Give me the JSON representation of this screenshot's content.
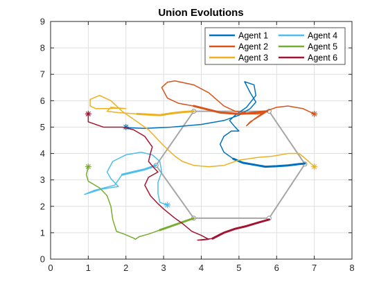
{
  "chart_data": {
    "type": "line",
    "title": "Union Evolutions",
    "xlabel": "",
    "ylabel": "",
    "xlim": [
      0,
      8
    ],
    "ylim": [
      0,
      9
    ],
    "xticks": [
      "0",
      "1",
      "2",
      "3",
      "4",
      "5",
      "6",
      "7",
      "8"
    ],
    "yticks": [
      "0",
      "1",
      "2",
      "3",
      "4",
      "5",
      "6",
      "7",
      "8",
      "9"
    ],
    "grid": true,
    "legend_placement": "top-right",
    "formation": {
      "color": "#a6a6a6",
      "vertices": [
        [
          3.8,
          5.6
        ],
        [
          5.8,
          5.6
        ],
        [
          6.75,
          3.6
        ],
        [
          5.8,
          1.55
        ],
        [
          3.8,
          1.55
        ],
        [
          2.8,
          3.55
        ]
      ]
    },
    "series": [
      {
        "name": "Agent 1",
        "color": "#0072bd",
        "start": [
          2.0,
          5.0
        ],
        "x": [
          2.0,
          2.5,
          3.2,
          4.0,
          4.6,
          5.0,
          5.3,
          5.45,
          5.3,
          5.15,
          5.4,
          5.45,
          5.2,
          4.9,
          4.75,
          4.9,
          5.0,
          4.8,
          4.6,
          4.5,
          4.6,
          4.85,
          5.1,
          5.5,
          5.7,
          6.0,
          6.3,
          6.6,
          6.75
        ],
        "y": [
          4.98,
          4.95,
          5.0,
          5.1,
          5.25,
          5.45,
          5.7,
          5.95,
          6.3,
          6.72,
          6.6,
          6.2,
          5.75,
          5.45,
          5.25,
          5.0,
          4.85,
          4.85,
          4.65,
          4.35,
          4.05,
          3.8,
          3.65,
          3.55,
          3.5,
          3.52,
          3.55,
          3.6,
          3.62
        ],
        "thick_from": 21
      },
      {
        "name": "Agent 2",
        "color": "#d95319",
        "start": [
          7.0,
          5.5
        ],
        "x": [
          7.0,
          6.7,
          6.3,
          6.0,
          5.7,
          5.4,
          5.2,
          5.3,
          5.7,
          5.5,
          5.25,
          5.15,
          4.9,
          4.6,
          4.2,
          3.8,
          3.3,
          3.1,
          2.95,
          3.1,
          3.4,
          3.8,
          4.5,
          5.0,
          5.25,
          5.4,
          5.6,
          5.75
        ],
        "y": [
          5.5,
          5.7,
          5.8,
          5.75,
          5.6,
          5.3,
          5.05,
          5.2,
          5.55,
          5.5,
          5.5,
          5.55,
          5.6,
          5.8,
          6.3,
          6.6,
          6.75,
          6.7,
          6.5,
          6.1,
          5.9,
          5.8,
          5.55,
          5.5,
          5.52,
          5.55,
          5.58,
          5.6
        ],
        "thick_from": 21
      },
      {
        "name": "Agent 3",
        "color": "#edb120",
        "start": [
          7.0,
          3.5
        ],
        "x": [
          7.0,
          6.85,
          6.6,
          6.3,
          5.9,
          5.5,
          5.0,
          4.6,
          4.2,
          3.8,
          3.5,
          3.3,
          3.0,
          2.6,
          2.2,
          1.9,
          1.6,
          1.3,
          1.05,
          1.05,
          1.2,
          1.5,
          1.8,
          2.0,
          1.6,
          1.5,
          1.8,
          2.3,
          2.9,
          3.2,
          3.5,
          3.8
        ],
        "y": [
          3.5,
          3.7,
          4.0,
          4.0,
          3.9,
          3.85,
          3.75,
          3.55,
          3.5,
          3.55,
          3.7,
          3.9,
          4.3,
          4.9,
          5.3,
          5.6,
          6.0,
          6.2,
          6.05,
          5.8,
          5.7,
          5.7,
          5.72,
          5.7,
          5.75,
          5.6,
          5.55,
          5.5,
          5.45,
          5.52,
          5.57,
          5.6
        ],
        "thick_from": 27
      },
      {
        "name": "Agent 4",
        "color": "#4dbeee",
        "start": [
          3.1,
          2.05
        ],
        "x": [
          3.1,
          2.9,
          2.85,
          2.85,
          2.95,
          2.9,
          2.7,
          2.4,
          2.0,
          1.65,
          1.5,
          1.6,
          1.8,
          1.35,
          0.9,
          1.15,
          1.7,
          1.9,
          2.2,
          2.5,
          2.8
        ],
        "y": [
          2.05,
          2.15,
          2.5,
          2.9,
          3.3,
          3.7,
          3.95,
          4.05,
          3.95,
          3.7,
          3.3,
          3.05,
          2.75,
          2.65,
          2.45,
          2.6,
          2.8,
          3.2,
          3.3,
          3.4,
          3.55
        ],
        "thick_from": 17
      },
      {
        "name": "Agent 5",
        "color": "#77ac30",
        "start": [
          1.0,
          3.5
        ],
        "x": [
          1.0,
          0.95,
          1.0,
          1.3,
          1.5,
          1.6,
          1.65,
          1.75,
          1.95,
          2.2,
          2.25,
          2.35,
          2.6,
          2.9,
          3.2,
          3.5,
          3.8
        ],
        "y": [
          3.5,
          3.2,
          2.95,
          2.7,
          2.4,
          2.0,
          1.5,
          1.05,
          0.95,
          0.8,
          0.75,
          0.85,
          0.95,
          1.1,
          1.25,
          1.4,
          1.55
        ],
        "thick_from": 13
      },
      {
        "name": "Agent 6",
        "color": "#a2142f",
        "start": [
          1.0,
          5.5
        ],
        "x": [
          1.0,
          1.0,
          1.4,
          1.9,
          2.2,
          2.5,
          2.7,
          2.65,
          2.6,
          2.75,
          2.85,
          2.6,
          2.5,
          2.65,
          2.85,
          3.0,
          3.3,
          3.5,
          3.75,
          4.0,
          4.2,
          4.0,
          3.9,
          4.3,
          4.6,
          4.9,
          5.2,
          5.5,
          5.8
        ],
        "y": [
          5.5,
          5.2,
          5.0,
          5.0,
          4.9,
          4.65,
          4.25,
          4.0,
          3.7,
          3.45,
          3.3,
          3.1,
          2.8,
          2.4,
          2.1,
          1.9,
          1.55,
          1.35,
          1.05,
          0.9,
          0.75,
          0.72,
          0.72,
          0.78,
          1.0,
          1.15,
          1.25,
          1.38,
          1.5
        ],
        "thick_from": 23
      }
    ]
  }
}
